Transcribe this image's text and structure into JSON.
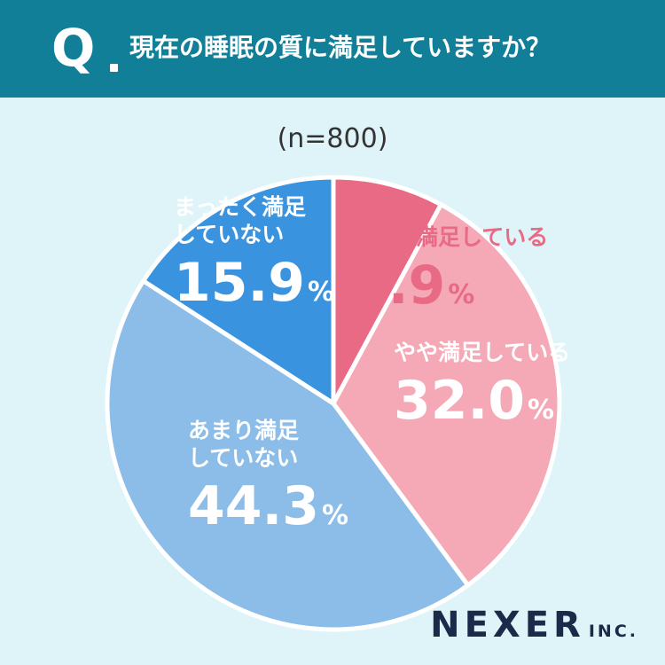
{
  "question": {
    "mark": "Q",
    "text": "現在の睡眠の質に満足していますか？"
  },
  "sample": "(n=800)",
  "chart_data": {
    "type": "pie",
    "title": "現在の睡眠の質に満足していますか？",
    "slices": [
      {
        "label": "とても満足している",
        "value": 7.9,
        "unit": "%",
        "color": "#e86a85",
        "text_color": "#e86a85"
      },
      {
        "label": "やや満足している",
        "value": 32.0,
        "unit": "%",
        "color": "#f5a8b6",
        "text_color": "#ffffff"
      },
      {
        "label": "あまり満足していない",
        "value": 44.3,
        "unit": "%",
        "color": "#8bbde8",
        "text_color": "#ffffff"
      },
      {
        "label": "まったく満足していない",
        "value": 15.9,
        "unit": "%",
        "color": "#3a93de",
        "text_color": "#ffffff"
      }
    ]
  },
  "labels": [
    {
      "line1": "とても満足している",
      "line2": "",
      "pct": "7.9",
      "unit": "%"
    },
    {
      "line1": "やや満足している",
      "line2": "",
      "pct": "32.0",
      "unit": "%"
    },
    {
      "line1": "あまり満足",
      "line2": "していない",
      "pct": "44.3",
      "unit": "%"
    },
    {
      "line1": "まったく満足",
      "line2": "していない",
      "pct": "15.9",
      "unit": "%"
    }
  ],
  "logo": {
    "main": "NEXER",
    "sub": "INC."
  }
}
